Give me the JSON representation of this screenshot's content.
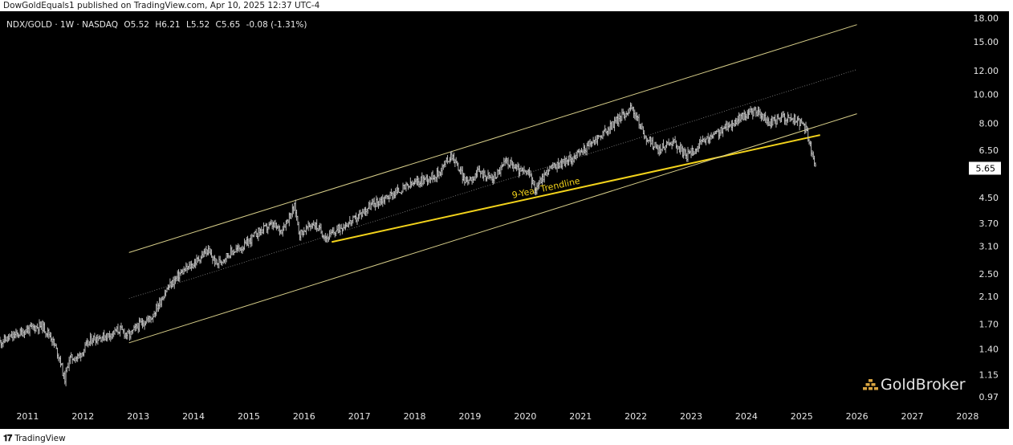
{
  "header": {
    "published_line": "DowGoldEquals1 published on TradingView.com, Apr 10, 2025 12:37 UTC-4",
    "symbol_line": "NDX/GOLD · 1W · NASDAQ",
    "ohlc": [
      {
        "label": "O",
        "value": "5.52"
      },
      {
        "label": "H",
        "value": "6.21"
      },
      {
        "label": "L",
        "value": "5.52"
      },
      {
        "label": "C",
        "value": "5.65"
      }
    ],
    "change": "-0.08 (-1.31%)"
  },
  "footer": {
    "brand": "TradingView"
  },
  "watermark": {
    "text": "GoldBroker"
  },
  "colors": {
    "background": "#000000",
    "price": "#c9c9c9",
    "channel": "#d8cf8a",
    "midline": "#8a8a8a",
    "trendline": "#f2d21b",
    "price_tag_bg": "#ffffff",
    "watermark_bars": "#d9a441"
  },
  "chart_data": {
    "type": "line",
    "title": "NDX/GOLD · 1W · NASDAQ",
    "xlabel": "",
    "ylabel": "",
    "y_scale": "log",
    "xlim": [
      "2010-07-01",
      "2028-10-01"
    ],
    "ylim": [
      0.9,
      18.5
    ],
    "x_ticks": [
      "2011",
      "2012",
      "2013",
      "2014",
      "2015",
      "2016",
      "2017",
      "2018",
      "2019",
      "2020",
      "2021",
      "2022",
      "2023",
      "2024",
      "2025",
      "2026",
      "2027",
      "2028"
    ],
    "y_ticks": [
      0.97,
      1.15,
      1.4,
      1.7,
      2.1,
      2.5,
      3.1,
      3.7,
      4.5,
      5.65,
      6.5,
      8.0,
      10.0,
      12.0,
      15.0,
      18.0
    ],
    "y_tick_labels": [
      "0.97",
      "1.15",
      "1.40",
      "1.70",
      "2.10",
      "2.50",
      "3.10",
      "3.70",
      "4.50",
      "5.65",
      "6.50",
      "8.00",
      "10.00",
      "12.00",
      "15.00",
      "18.00"
    ],
    "last_price": "5.65",
    "series": [
      {
        "x": [
          "2010-07",
          "2010-10",
          "2011-01",
          "2011-04",
          "2011-06",
          "2011-08",
          "2011-09",
          "2011-10",
          "2011-12",
          "2012-03",
          "2012-06",
          "2012-09",
          "2012-11",
          "2013-01",
          "2013-04",
          "2013-07",
          "2013-10",
          "2014-01",
          "2014-04",
          "2014-06",
          "2014-09",
          "2014-12",
          "2015-03",
          "2015-06",
          "2015-08",
          "2015-11",
          "2015-12",
          "2016-03",
          "2016-06",
          "2016-09",
          "2016-12",
          "2017-03",
          "2017-06",
          "2017-09",
          "2017-12",
          "2018-03",
          "2018-06",
          "2018-09",
          "2018-12",
          "2019-03",
          "2019-06",
          "2019-09",
          "2019-12",
          "2020-02",
          "2020-03",
          "2020-06",
          "2020-09",
          "2020-12",
          "2021-03",
          "2021-06",
          "2021-09",
          "2021-12",
          "2022-01",
          "2022-03",
          "2022-06",
          "2022-09",
          "2022-12",
          "2023-03",
          "2023-06",
          "2023-09",
          "2023-12",
          "2024-03",
          "2024-06",
          "2024-09",
          "2024-12",
          "2025-02",
          "2025-03",
          "2025-04"
        ],
        "values": [
          1.48,
          1.55,
          1.63,
          1.68,
          1.55,
          1.3,
          1.1,
          1.3,
          1.32,
          1.52,
          1.55,
          1.63,
          1.55,
          1.68,
          1.8,
          2.2,
          2.5,
          2.7,
          3.0,
          2.7,
          2.95,
          3.1,
          3.45,
          3.65,
          3.5,
          4.2,
          3.4,
          3.7,
          3.3,
          3.6,
          3.8,
          4.2,
          4.45,
          4.7,
          4.95,
          5.2,
          5.4,
          6.3,
          5.1,
          5.5,
          5.2,
          6.0,
          5.5,
          5.4,
          4.8,
          5.6,
          5.9,
          6.2,
          6.8,
          7.4,
          8.2,
          9.0,
          8.5,
          7.2,
          6.5,
          7.0,
          6.2,
          6.8,
          7.3,
          7.8,
          8.4,
          8.8,
          8.0,
          8.4,
          8.2,
          7.6,
          6.5,
          5.65
        ],
        "style": "ohlc-bars"
      }
    ],
    "annotations": [
      {
        "type": "trendline",
        "label": "9-Year Trendline",
        "x": [
          "2016-07",
          "2025-05"
        ],
        "y": [
          3.2,
          7.3
        ]
      },
      {
        "type": "channel-upper",
        "label": "",
        "x": [
          "2012-11",
          "2026-01"
        ],
        "y": [
          2.95,
          17.1
        ]
      },
      {
        "type": "channel-mid",
        "label": "",
        "x": [
          "2012-11",
          "2026-01"
        ],
        "y": [
          2.07,
          12.1
        ]
      },
      {
        "type": "channel-lower",
        "label": "",
        "x": [
          "2012-11",
          "2026-01"
        ],
        "y": [
          1.47,
          8.6
        ]
      }
    ],
    "grid": false,
    "legend": "none"
  }
}
